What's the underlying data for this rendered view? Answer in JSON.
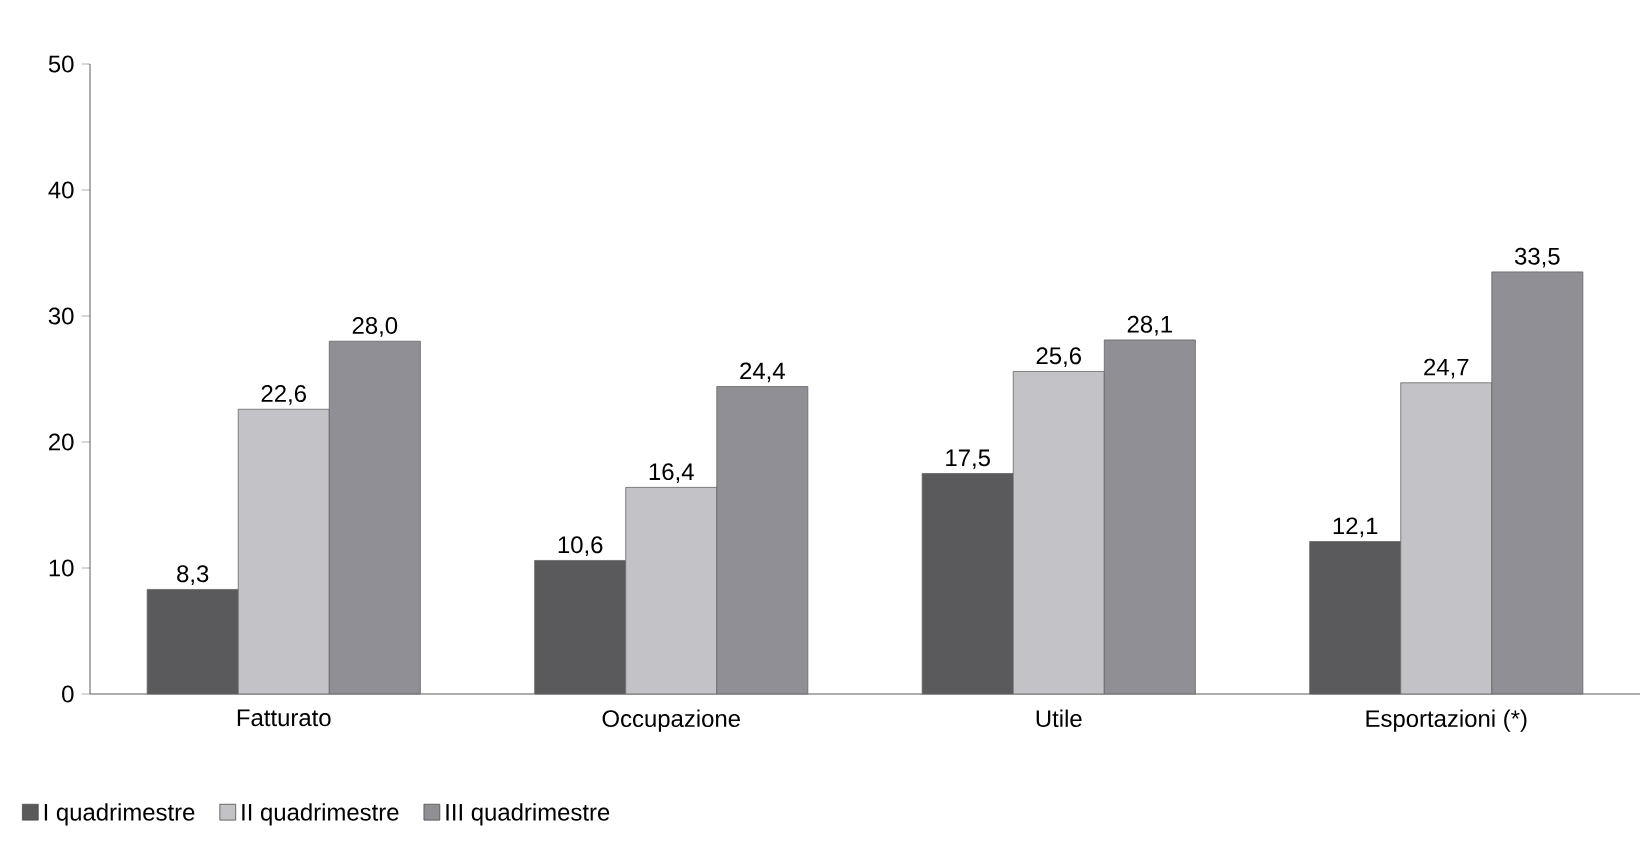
{
  "chart_data": {
    "type": "bar",
    "categories": [
      "Fatturato",
      "Occupazione",
      "Utile",
      "Esportazioni (*)"
    ],
    "series": [
      {
        "name": "I quadrimestre",
        "color": "#5a5a5c",
        "values": [
          8.3,
          10.6,
          17.5,
          12.1
        ],
        "value_labels": [
          "8,3",
          "10,6",
          "17,5",
          "12,1"
        ]
      },
      {
        "name": "II quadrimestre",
        "color": "#c3c3c7",
        "values": [
          22.6,
          16.4,
          25.6,
          24.7
        ],
        "value_labels": [
          "22,6",
          "16,4",
          "25,6",
          "24,7"
        ]
      },
      {
        "name": "III quadrimestre",
        "color": "#8f8f95",
        "values": [
          28.0,
          24.4,
          28.1,
          33.5
        ],
        "value_labels": [
          "28,0",
          "24,4",
          "28,1",
          "33,5"
        ]
      }
    ],
    "ylim": [
      0,
      50
    ],
    "yticks": [
      0,
      10,
      20,
      30,
      40,
      50
    ],
    "grid": false,
    "legend": "bottom left"
  }
}
